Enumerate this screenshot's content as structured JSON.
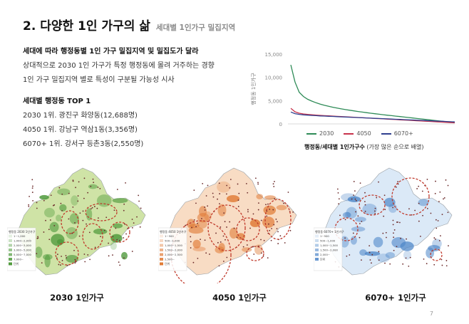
{
  "header": {
    "title": "2. 다양한 1인 가구의 삶",
    "subtitle": "세대별 1인가구 밀집지역"
  },
  "summary": {
    "heading": "세대에 따라 행정동별 1인 가구 밀집지역 및 밀집도가 달라",
    "line1": "상대적으로 2030 1인 가구가 특정 행정동에 몰려 거주하는 경향",
    "line2": "1인 가구 밀집지역 별로 특성이 구분될 가능성 시사"
  },
  "top": {
    "heading": "세대별 행정동 TOP 1",
    "items": [
      "2030 1위. 광진구 화양동(12,688명)",
      "4050 1위. 강남구 역삼1동(3,356명)",
      "6070+ 1위. 강서구 등촌3동(2,550명)"
    ]
  },
  "chart_data": {
    "type": "line",
    "ylabel": "행정동 1인가구",
    "yticks": [
      "15,000",
      "10,000",
      "5,000",
      "0"
    ],
    "ylim": [
      0,
      15000
    ],
    "caption_bold": "행정동/세대별 1인가구수",
    "caption_rest": "(가장 많은 순으로 배열)",
    "series": [
      {
        "name": "2030",
        "color": "#2e8b57",
        "values": [
          12688,
          9000,
          6800,
          5900,
          5300,
          4900,
          4550,
          4250,
          4000,
          3780,
          3580,
          3400,
          3230,
          3080,
          2940,
          2800,
          2670,
          2540,
          2420,
          2300,
          2190,
          2080,
          1970,
          1870,
          1770,
          1670,
          1570,
          1470,
          1370,
          1270,
          1170,
          1070,
          970,
          870,
          770,
          670,
          570,
          470,
          370,
          270
        ]
      },
      {
        "name": "4050",
        "color": "#c8324b",
        "values": [
          3356,
          2600,
          2300,
          2150,
          2050,
          1970,
          1900,
          1840,
          1780,
          1730,
          1680,
          1630,
          1580,
          1530,
          1480,
          1430,
          1380,
          1330,
          1280,
          1230,
          1180,
          1130,
          1080,
          1030,
          980,
          930,
          880,
          830,
          780,
          730,
          680,
          630,
          580,
          530,
          480,
          430,
          380,
          330,
          280,
          230
        ]
      },
      {
        "name": "6070+",
        "color": "#2f3f8f",
        "values": [
          2550,
          2200,
          2050,
          1950,
          1880,
          1820,
          1770,
          1720,
          1680,
          1640,
          1600,
          1560,
          1520,
          1480,
          1440,
          1400,
          1360,
          1320,
          1280,
          1240,
          1200,
          1160,
          1120,
          1080,
          1040,
          1000,
          960,
          920,
          880,
          840,
          800,
          760,
          720,
          680,
          640,
          600,
          560,
          520,
          480,
          430
        ]
      }
    ]
  },
  "maps": [
    {
      "label": "2030 1인가구",
      "fill": "#cfe3a6",
      "dark": "#4f9a3c",
      "legend_title": "행정동 2030 1인가구",
      "legend": [
        "1~1,000",
        "1,000~2,000",
        "2,000~3,000",
        "3,000~5,000",
        "5,000~7,000",
        "7,000~",
        "단위"
      ]
    },
    {
      "label": "4050 1인가구",
      "fill": "#f8dcc4",
      "dark": "#e07a35",
      "legend_title": "행정동 4050 1인가구",
      "legend": [
        "1~500",
        "500~1,000",
        "1,000~1,500",
        "1,500~2,000",
        "2,000~2,500",
        "2,500~",
        "단위"
      ]
    },
    {
      "label": "6070+ 1인가구",
      "fill": "#dbe9f7",
      "dark": "#4d86c8",
      "legend_title": "행정동 6070+ 1인가구",
      "legend": [
        "1~500",
        "500~1,000",
        "1,000~1,500",
        "1,500~2,000",
        "2,000~",
        "단위"
      ]
    }
  ],
  "page_number": "7"
}
